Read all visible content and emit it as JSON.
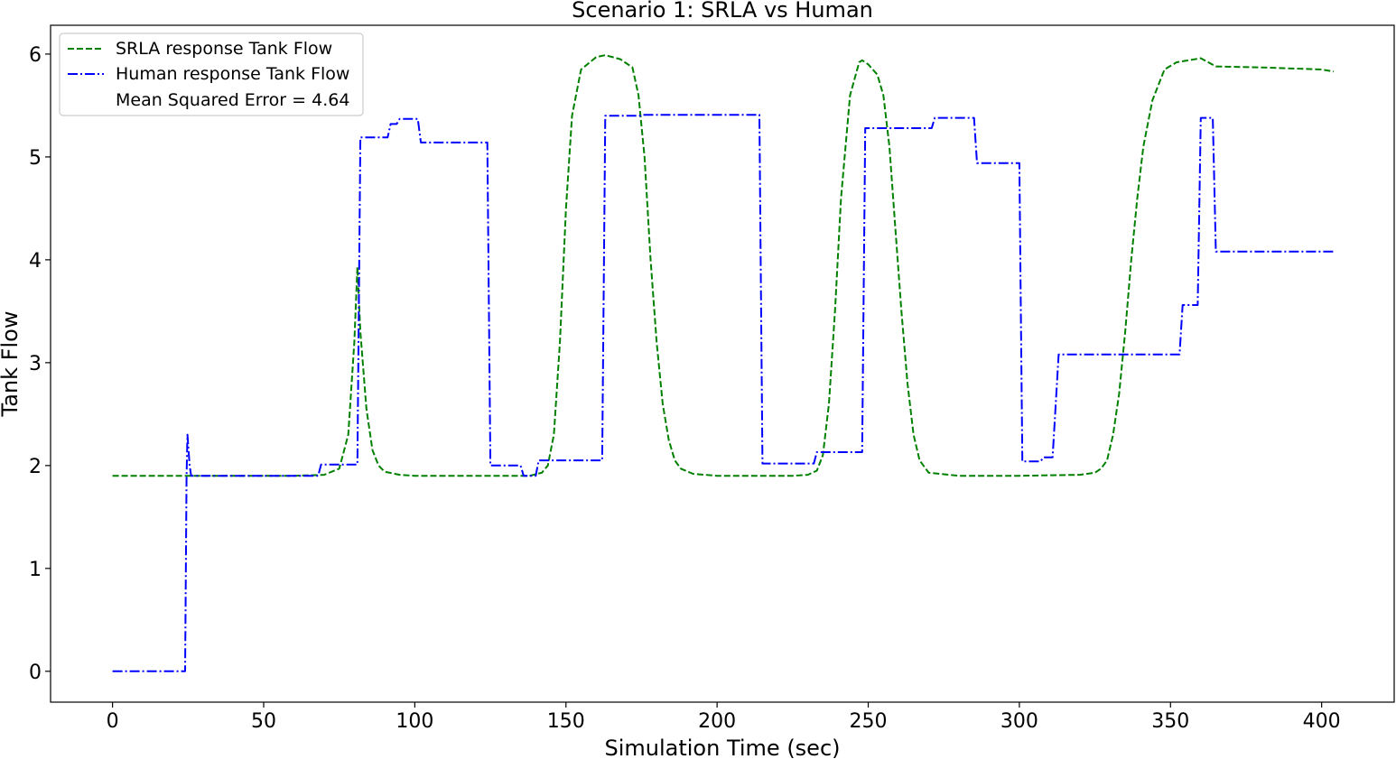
{
  "chart_data": {
    "type": "line",
    "title": "Scenario 1: SRLA vs Human",
    "xlabel": "Simulation Time (sec)",
    "ylabel": "Tank Flow",
    "xlim": [
      -20.5,
      424
    ],
    "ylim": [
      -0.3,
      6.28
    ],
    "xticks": [
      0,
      50,
      100,
      150,
      200,
      250,
      300,
      350,
      400
    ],
    "yticks": [
      0,
      1,
      2,
      3,
      4,
      5,
      6
    ],
    "grid": false,
    "legend_position": "upper-left",
    "legend_note": "Mean Squared Error = 4.64",
    "series": [
      {
        "name": "SRLA response Tank Flow",
        "color": "#008000",
        "dash": "dashed",
        "x": [
          0,
          60,
          70,
          75,
          78,
          80,
          81,
          82,
          84,
          86,
          88,
          90,
          95,
          100,
          120,
          138,
          142,
          144,
          146,
          148,
          150,
          152,
          155,
          160,
          163,
          168,
          172,
          174,
          176,
          178,
          180,
          182,
          184,
          186,
          188,
          192,
          200,
          225,
          230,
          233,
          235,
          237,
          239,
          241,
          244,
          247,
          248,
          250,
          253,
          255,
          257,
          259,
          261,
          263,
          265,
          267,
          270,
          280,
          300,
          320,
          325,
          327,
          329,
          331,
          333,
          335,
          337,
          339,
          341,
          344,
          348,
          352,
          356,
          360,
          365,
          380,
          400,
          404
        ],
        "y": [
          1.9,
          1.9,
          1.91,
          1.97,
          2.3,
          3.2,
          3.93,
          3.3,
          2.55,
          2.15,
          2.0,
          1.94,
          1.91,
          1.9,
          1.9,
          1.9,
          1.93,
          2.0,
          2.3,
          3.2,
          4.5,
          5.4,
          5.85,
          5.97,
          5.99,
          5.95,
          5.87,
          5.6,
          5.0,
          4.0,
          3.2,
          2.6,
          2.25,
          2.05,
          1.97,
          1.92,
          1.9,
          1.9,
          1.91,
          1.95,
          2.1,
          2.6,
          3.5,
          4.6,
          5.6,
          5.92,
          5.94,
          5.9,
          5.8,
          5.6,
          5.1,
          4.3,
          3.5,
          2.8,
          2.3,
          2.05,
          1.93,
          1.9,
          1.9,
          1.91,
          1.93,
          1.97,
          2.05,
          2.3,
          2.7,
          3.3,
          4.0,
          4.6,
          5.1,
          5.55,
          5.85,
          5.92,
          5.94,
          5.96,
          5.88,
          5.87,
          5.85,
          5.83
        ]
      },
      {
        "name": "Human response Tank Flow",
        "color": "#0000ff",
        "dash": "dashdot",
        "x": [
          0,
          24,
          24.5,
          24.8,
          25.5,
          26,
          68,
          69,
          81,
          82,
          91,
          92,
          94,
          95,
          101,
          102,
          124,
          125,
          135,
          136,
          140,
          141,
          162,
          163,
          175,
          176,
          214,
          215,
          232,
          233,
          248,
          249,
          271,
          272,
          285,
          286,
          300,
          301,
          307,
          308,
          311,
          313,
          353,
          354,
          359,
          360,
          364,
          365,
          404
        ],
        "y": [
          0,
          0,
          1.9,
          2.3,
          2.0,
          1.9,
          1.9,
          2.01,
          2.01,
          5.19,
          5.19,
          5.32,
          5.32,
          5.37,
          5.37,
          5.14,
          5.14,
          2.0,
          2.0,
          1.9,
          1.9,
          2.05,
          2.05,
          5.4,
          5.4,
          5.41,
          5.41,
          2.02,
          2.02,
          2.13,
          2.13,
          5.28,
          5.28,
          5.38,
          5.38,
          4.94,
          4.94,
          2.04,
          2.04,
          2.08,
          2.08,
          3.08,
          3.08,
          3.56,
          3.56,
          5.38,
          5.38,
          4.08,
          4.08
        ]
      }
    ]
  }
}
